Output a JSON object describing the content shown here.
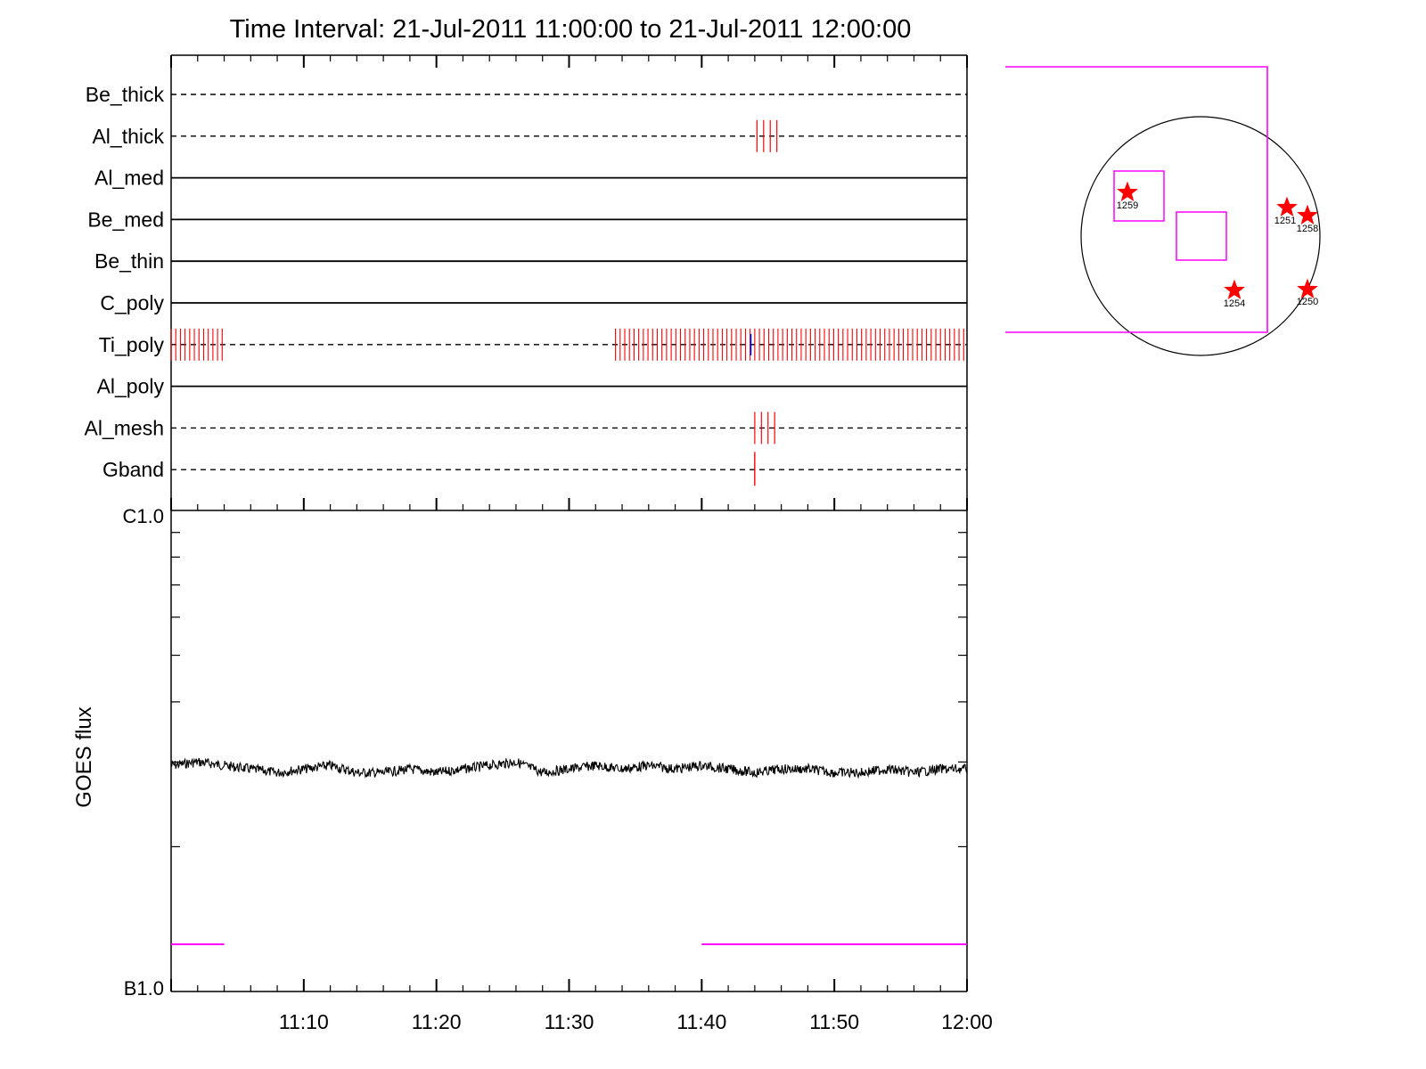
{
  "chart_data": [
    {
      "type": "line",
      "title": "Time Interval: 21-Jul-2011 11:00:00 to 21-Jul-2011 12:00:00",
      "filters": [
        "Be_thick",
        "Al_thick",
        "Al_med",
        "Be_med",
        "Be_thin",
        "C_poly",
        "Ti_poly",
        "Al_poly",
        "Al_mesh",
        "Gband"
      ],
      "filter_line_style": [
        "dashed",
        "dashed",
        "solid",
        "solid",
        "solid",
        "solid",
        "dashed",
        "solid",
        "dashed",
        "dashed"
      ],
      "exposure_times": {
        "Al_thick": [
          "11:44:10",
          "11:44:40",
          "11:45:10",
          "11:45:40"
        ],
        "Ti_poly": [
          "11:00:00-11:04:00",
          "11:33:30-12:00:00"
        ],
        "Al_mesh": [
          "11:44:00",
          "11:44:30",
          "11:45:00",
          "11:45:30"
        ],
        "Gband": [
          "11:44:00"
        ]
      },
      "colors": {
        "exposure": "#ff0000",
        "highlight": "#0000ff",
        "axis": "#000000",
        "coverage": "#ff00ff"
      }
    },
    {
      "type": "line",
      "ylabel": "GOES flux",
      "ytick_labels": [
        "C1.0",
        "B1.0"
      ],
      "xtick_labels": [
        "11:10",
        "11:20",
        "11:30",
        "11:40",
        "11:50",
        "12:00"
      ],
      "x_range": [
        "11:00",
        "12:00"
      ],
      "ylim": [
        1e-07,
        1e-06
      ],
      "yscale": "log",
      "series": [
        {
          "color": "#000000",
          "x_minutes": [
            0,
            2,
            4,
            6,
            8,
            10,
            12,
            14,
            16,
            18,
            20,
            22,
            24,
            26,
            28,
            30,
            32,
            34,
            36,
            38,
            40,
            42,
            44,
            46,
            48,
            50,
            52,
            54,
            56,
            58,
            60
          ],
          "values": [
            2.95e-07,
            3e-07,
            2.95e-07,
            2.9e-07,
            2.85e-07,
            2.9e-07,
            2.95e-07,
            2.85e-07,
            2.85e-07,
            2.9e-07,
            2.85e-07,
            2.9e-07,
            2.95e-07,
            3e-07,
            2.85e-07,
            2.9e-07,
            2.95e-07,
            2.9e-07,
            2.95e-07,
            2.9e-07,
            2.95e-07,
            2.9e-07,
            2.85e-07,
            2.9e-07,
            2.9e-07,
            2.85e-07,
            2.85e-07,
            2.9e-07,
            2.85e-07,
            2.9e-07,
            2.9e-07
          ]
        }
      ],
      "coverage_intervals": [
        [
          "11:00",
          "11:04"
        ],
        [
          "11:40",
          "12:00"
        ]
      ]
    },
    {
      "type": "scatter",
      "region_labels": [
        "1259",
        "1251",
        "1258",
        "1254",
        "1250"
      ]
    }
  ]
}
